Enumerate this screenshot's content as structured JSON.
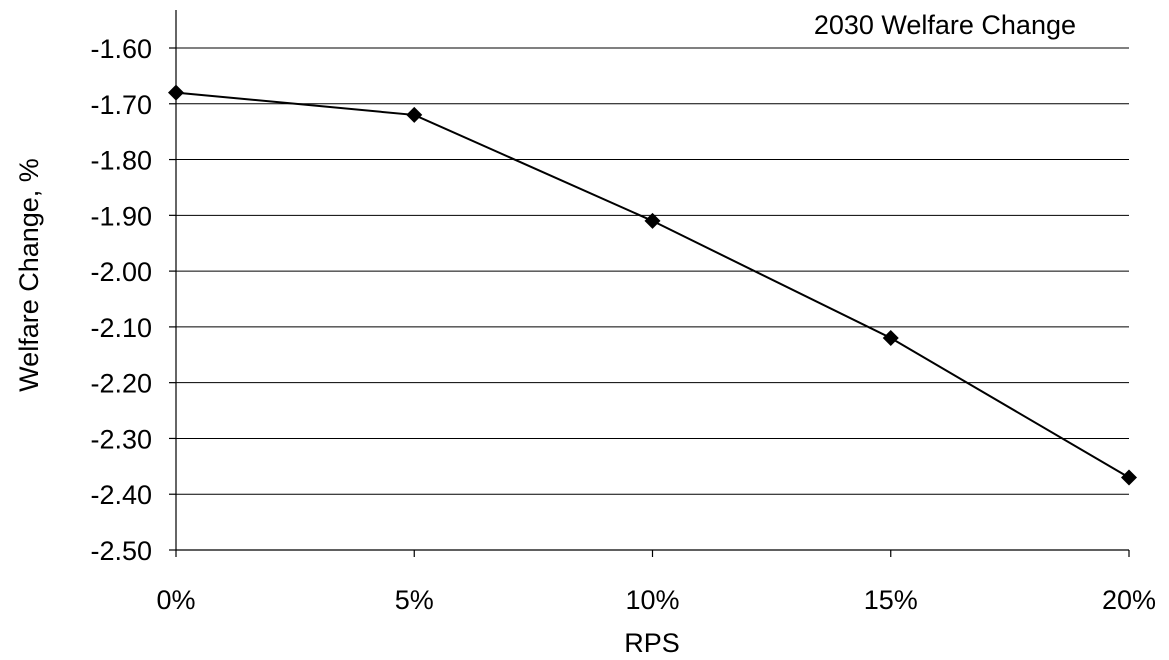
{
  "chart_data": {
    "type": "line",
    "title": "2030 Welfare Change",
    "xlabel": "RPS",
    "ylabel": "Welfare Change, %",
    "categories": [
      "0%",
      "5%",
      "10%",
      "15%",
      "20%"
    ],
    "series": [
      {
        "values": [
          -1.68,
          -1.72,
          -1.91,
          -2.12,
          -2.37
        ]
      }
    ],
    "ylim": [
      -2.5,
      -1.6
    ],
    "yticks": [
      -1.6,
      -1.7,
      -1.8,
      -1.9,
      -2.0,
      -2.1,
      -2.2,
      -2.3,
      -2.4,
      -2.5
    ],
    "ytick_labels": [
      "-1.60",
      "-1.70",
      "-1.80",
      "-1.90",
      "-2.00",
      "-2.10",
      "-2.20",
      "-2.30",
      "-2.40",
      "-2.50"
    ],
    "grid": "horizontal",
    "marker": "diamond",
    "line_color": "#000000"
  }
}
